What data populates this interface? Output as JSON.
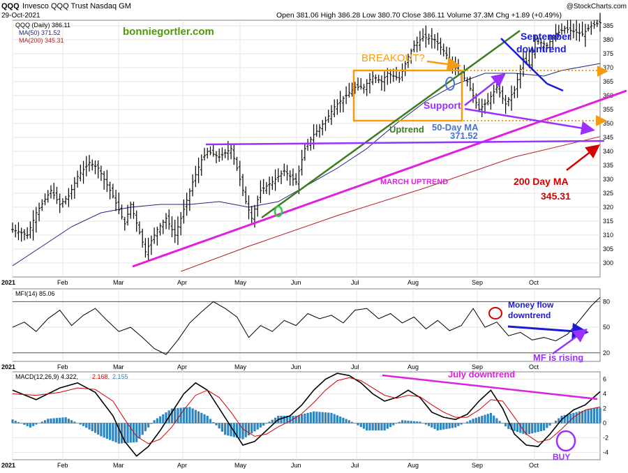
{
  "header": {
    "symbol": "QQQ",
    "name": "Invesco QQQ Trust Nasdaq GM",
    "date": "29-Oct-2021",
    "ohlc": "Open 381.06  High 386.28  Low 380.70  Close 386.11  Volume 37.3M  Chg +1.89 (+0.49%)",
    "brand": "@StockCharts.com"
  },
  "chart_data": [
    {
      "type": "line",
      "panel": "price",
      "title": "QQQ (Daily) 386.11",
      "ylim": [
        295,
        387
      ],
      "yticks": [
        300,
        305,
        310,
        315,
        320,
        325,
        330,
        335,
        340,
        345,
        350,
        355,
        360,
        365,
        370,
        375,
        380,
        385
      ],
      "x_months": [
        "2021",
        "Feb",
        "Mar",
        "Apr",
        "May",
        "Jun",
        "Jul",
        "Aug",
        "Sep",
        "Oct"
      ],
      "legend": [
        {
          "label": "QQQ (Daily) 386.11",
          "color": "#000000"
        },
        {
          "label": "MA(50) 371.52",
          "color": "#1a237e"
        },
        {
          "label": "MA(200) 345.31",
          "color": "#b71c1c"
        }
      ],
      "series": [
        {
          "name": "MA(50) 371.52",
          "color": "#1a237e",
          "x": [
            0,
            10,
            20,
            30,
            40,
            50,
            60,
            70,
            80,
            90,
            100,
            110,
            120,
            130,
            140,
            150,
            160,
            170,
            180,
            186,
            199
          ],
          "values": [
            299,
            306,
            313,
            318,
            320,
            321,
            321,
            322,
            320,
            322,
            328,
            334,
            341,
            350,
            358,
            364,
            368,
            368,
            367,
            369,
            371.5
          ]
        },
        {
          "name": "MA(200) 345.31",
          "color": "#b71c1c",
          "x": [
            57,
            80,
            110,
            140,
            170,
            199
          ],
          "values": [
            297,
            306,
            317,
            327,
            338,
            345.3
          ]
        }
      ],
      "price_path": {
        "x": [
          0,
          5,
          8,
          13,
          16,
          19,
          22,
          26,
          29,
          34,
          38,
          40,
          43,
          45,
          49,
          52,
          55,
          57,
          61,
          64,
          66,
          70,
          74,
          76,
          79,
          81,
          84,
          89,
          92,
          96,
          99,
          102,
          106,
          109,
          112,
          116,
          119,
          122,
          125,
          127,
          131,
          134,
          136,
          139,
          143,
          146,
          150,
          154,
          158,
          161,
          164,
          167,
          170,
          173,
          175,
          177,
          181,
          184,
          187,
          190,
          193,
          196,
          199
        ],
        "values": [
          312,
          310,
          318,
          326,
          321,
          324,
          331,
          336,
          334,
          324,
          314,
          321,
          311,
          304,
          312,
          316,
          310,
          316,
          329,
          337,
          340,
          338,
          341,
          334,
          322,
          316,
          326,
          330,
          333,
          329,
          341,
          346,
          351,
          356,
          359,
          363,
          363,
          367,
          365,
          368,
          366,
          374,
          378,
          381,
          380,
          376,
          370,
          365,
          355,
          358,
          363,
          357,
          362,
          373,
          371,
          380,
          378,
          382,
          384,
          383,
          382,
          385,
          386.1
        ]
      },
      "annotations": [
        {
          "text": "bonniegortler.com",
          "color": "#4e9a06"
        },
        {
          "text": "BREAKOUT?",
          "color": "#f39c12"
        },
        {
          "text": "September",
          "color": "#1a1ad6"
        },
        {
          "text": "downtrend",
          "color": "#1a1ad6"
        },
        {
          "text": "Support",
          "color": "#9b30ff"
        },
        {
          "text": "Uptrend",
          "color": "#3b7d1e"
        },
        {
          "text": "50-Day MA",
          "color": "#4a74c9"
        },
        {
          "text": "371.52",
          "color": "#4a74c9"
        },
        {
          "text": "MARCH UPTREND",
          "color": "#e020e0"
        },
        {
          "text": "200 Day MA",
          "color": "#d40000"
        },
        {
          "text": "345.31",
          "color": "#d40000"
        }
      ]
    },
    {
      "type": "line",
      "panel": "mfi",
      "title": "MFI(14) 85.06",
      "ylim": [
        10,
        95
      ],
      "yticks": [
        20,
        50,
        80
      ],
      "x_months": [
        "2021",
        "Feb",
        "Mar",
        "Apr",
        "May",
        "Jun",
        "Jul",
        "Aug",
        "Sep",
        "Oct"
      ],
      "series": [
        {
          "name": "MFI(14) 85.06",
          "color": "#000000",
          "x": [
            0,
            4,
            8,
            12,
            16,
            20,
            24,
            28,
            32,
            36,
            40,
            44,
            48,
            52,
            56,
            60,
            64,
            68,
            72,
            76,
            80,
            84,
            88,
            92,
            96,
            100,
            104,
            108,
            112,
            116,
            120,
            124,
            128,
            132,
            136,
            140,
            144,
            148,
            152,
            156,
            160,
            164,
            168,
            172,
            176,
            180,
            184,
            188,
            192,
            196,
            199
          ],
          "values": [
            50,
            56,
            45,
            60,
            70,
            52,
            64,
            72,
            58,
            45,
            50,
            38,
            25,
            18,
            35,
            55,
            68,
            80,
            72,
            62,
            38,
            52,
            45,
            58,
            52,
            66,
            60,
            64,
            55,
            70,
            72,
            60,
            66,
            55,
            62,
            48,
            58,
            46,
            52,
            72,
            50,
            56,
            40,
            44,
            35,
            38,
            34,
            42,
            58,
            75,
            85
          ]
        }
      ],
      "annotations": [
        {
          "text": "Money flow",
          "color": "#1a1ad6"
        },
        {
          "text": "downtrend",
          "color": "#1a1ad6"
        },
        {
          "text": "MF is rising",
          "color": "#9b30ff"
        }
      ]
    },
    {
      "type": "line",
      "panel": "macd",
      "title": "MACD(12,26,9) 4.322, 2.168, 2.155",
      "legend": [
        {
          "label": "MACD(12,26,9) 4.322,",
          "color": "#000000"
        },
        {
          "label": "2.168,",
          "color": "#d40000"
        },
        {
          "label": "2.155",
          "color": "#2e86c1"
        }
      ],
      "ylim": [
        -5,
        7
      ],
      "yticks": [
        -4,
        -2,
        0,
        2,
        4,
        6
      ],
      "x_months": [
        "2021",
        "Feb",
        "Mar",
        "Apr",
        "May",
        "Jun",
        "Jul",
        "Aug",
        "Sep",
        "Oct"
      ],
      "series": [
        {
          "name": "MACD",
          "color": "#000000",
          "x": [
            0,
            8,
            16,
            22,
            28,
            34,
            38,
            42,
            46,
            50,
            54,
            58,
            62,
            66,
            70,
            74,
            78,
            82,
            86,
            90,
            94,
            98,
            102,
            106,
            110,
            114,
            118,
            122,
            126,
            130,
            134,
            138,
            142,
            146,
            150,
            154,
            158,
            162,
            166,
            170,
            174,
            178,
            182,
            186,
            190,
            194,
            199
          ],
          "values": [
            4.5,
            3.2,
            4.8,
            5.5,
            4.2,
            1.0,
            -2.5,
            -4.5,
            -3.2,
            -1.0,
            1.5,
            4.0,
            5.5,
            4.5,
            2.0,
            -0.5,
            -3.0,
            -2.5,
            -1.0,
            0.5,
            1.0,
            2.5,
            4.5,
            6.0,
            6.8,
            6.5,
            5.5,
            4.0,
            3.0,
            3.5,
            4.5,
            3.5,
            1.5,
            0.8,
            0.5,
            1.2,
            3.0,
            4.5,
            2.0,
            -1.5,
            -3.0,
            -3.2,
            -1.5,
            0.5,
            1.8,
            2.5,
            4.3
          ]
        },
        {
          "name": "Signal",
          "color": "#d40000",
          "x": [
            0,
            8,
            16,
            22,
            28,
            34,
            38,
            42,
            46,
            50,
            54,
            58,
            62,
            66,
            70,
            74,
            78,
            82,
            86,
            90,
            94,
            98,
            102,
            106,
            110,
            114,
            118,
            122,
            126,
            130,
            134,
            138,
            142,
            146,
            150,
            154,
            158,
            162,
            166,
            170,
            174,
            178,
            182,
            186,
            190,
            194,
            199
          ],
          "values": [
            4.0,
            3.8,
            4.2,
            4.8,
            4.6,
            3.0,
            0.5,
            -1.8,
            -2.8,
            -2.2,
            -0.5,
            1.8,
            3.8,
            4.5,
            3.5,
            1.5,
            -0.8,
            -1.8,
            -1.5,
            -0.5,
            0.3,
            1.3,
            2.8,
            4.5,
            5.8,
            6.2,
            5.8,
            4.8,
            3.8,
            3.4,
            3.8,
            3.6,
            2.5,
            1.5,
            0.8,
            0.8,
            1.8,
            3.2,
            3.0,
            0.8,
            -1.5,
            -2.6,
            -2.2,
            -0.8,
            0.8,
            1.8,
            2.2
          ]
        }
      ],
      "histogram": {
        "color": "#2e86c1",
        "x": [
          0,
          6,
          12,
          18,
          24,
          30,
          36,
          42,
          48,
          54,
          60,
          66,
          72,
          78,
          84,
          90,
          96,
          102,
          108,
          114,
          120,
          126,
          132,
          138,
          144,
          150,
          156,
          162,
          168,
          174,
          180,
          186,
          192,
          198
        ],
        "values": [
          0.5,
          -0.6,
          0.6,
          0.8,
          -0.4,
          -1.8,
          -2.8,
          -2.6,
          0.4,
          2.0,
          2.2,
          1.0,
          -1.6,
          -2.2,
          -0.6,
          1.0,
          1.0,
          1.6,
          1.4,
          0.4,
          -1.0,
          -1.0,
          0.4,
          0.2,
          -1.0,
          -0.6,
          0.6,
          1.4,
          -0.8,
          -1.6,
          -1.0,
          1.0,
          1.6,
          2.1
        ]
      },
      "annotations": [
        {
          "text": "July downtrend",
          "color": "#e020e0"
        },
        {
          "text": "BUY",
          "color": "#9b30ff"
        }
      ]
    }
  ]
}
